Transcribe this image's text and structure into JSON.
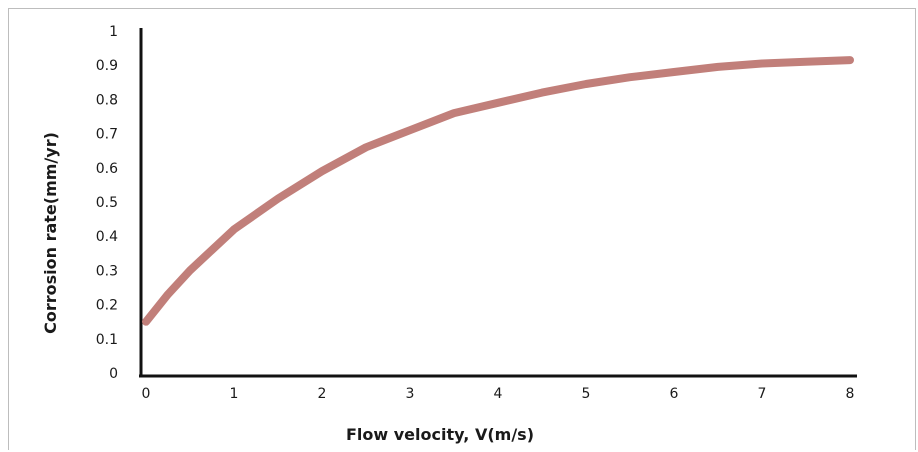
{
  "chart_data": {
    "type": "line",
    "xlabel": "Flow velocity, V(m/s)",
    "ylabel": "Corrosion rate(mm/yr)",
    "xlim": [
      0,
      8
    ],
    "ylim": [
      0,
      1
    ],
    "x_ticks": [
      "0",
      "1",
      "2",
      "3",
      "4",
      "5",
      "6",
      "7",
      "8"
    ],
    "y_ticks": [
      "0",
      "0.1",
      "0.2",
      "0.3",
      "0.4",
      "0.5",
      "0.6",
      "0.7",
      "0.8",
      "0.9",
      "1"
    ],
    "grid": false,
    "series": [
      {
        "color": "#c17f7a",
        "x": [
          0,
          0.25,
          0.5,
          0.75,
          1,
          1.5,
          2,
          2.5,
          3,
          3.5,
          4,
          4.5,
          5,
          5.5,
          6,
          6.5,
          7,
          7.5,
          8
        ],
        "y": [
          0.15,
          0.23,
          0.3,
          0.36,
          0.42,
          0.51,
          0.59,
          0.66,
          0.71,
          0.76,
          0.79,
          0.82,
          0.845,
          0.865,
          0.88,
          0.895,
          0.905,
          0.91,
          0.915
        ]
      }
    ]
  }
}
